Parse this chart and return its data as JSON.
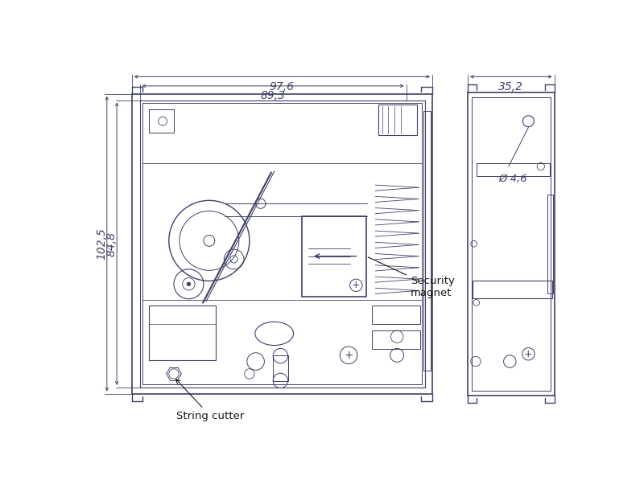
{
  "bg_color": "#ffffff",
  "lc": "#404068",
  "dc": "#404068",
  "dim_976": "97,6",
  "dim_893": "89,3",
  "dim_1025": "102,5",
  "dim_848": "84,8",
  "dim_352": "35,2",
  "dim_46": "Ø 4,6",
  "label_security": "Security\nmagnet",
  "label_string": "String cutter",
  "fs": 9.5
}
